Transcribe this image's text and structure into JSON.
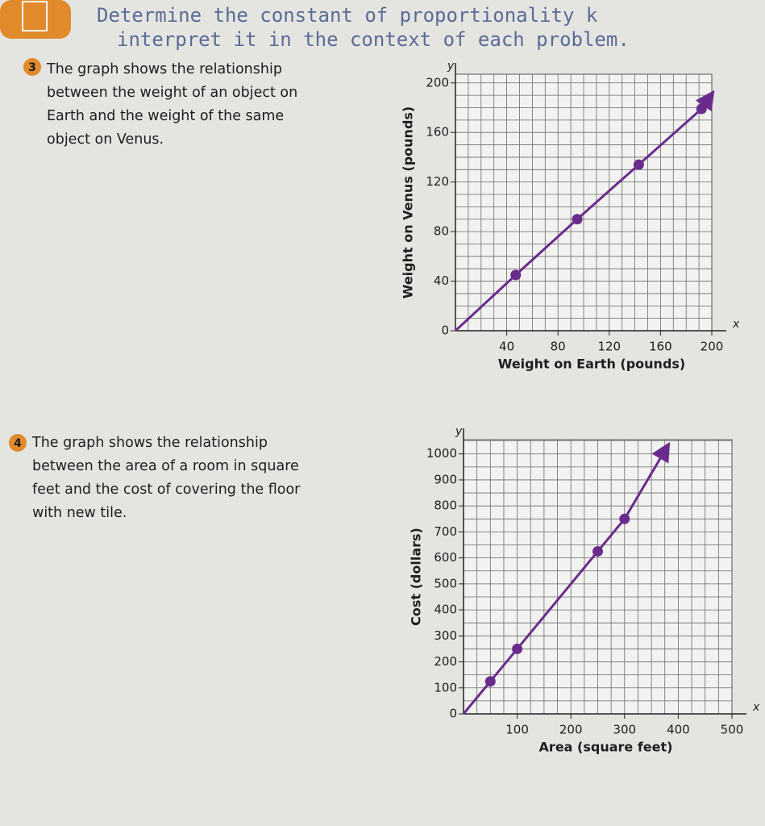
{
  "header": {
    "lines": [
      "Determine the constant of proportionality k",
      "interpret it in the context of each problem."
    ]
  },
  "problems": [
    {
      "number": "3",
      "lines": [
        "The graph shows the relationship",
        "between the weight of an object on",
        "Earth and the weight of the same",
        "object on Venus."
      ]
    },
    {
      "number": "4",
      "lines": [
        "The graph shows the relationship",
        "between the area of a room in square",
        "feet and the cost of covering the floor",
        "with new tile."
      ]
    }
  ],
  "chart_data": [
    {
      "type": "line",
      "xlabel": "Weight on Earth (pounds)",
      "ylabel": "Weight on Venus (pounds)",
      "x_axis_letter": "x",
      "y_axis_letter": "y",
      "x": [
        0,
        47,
        95,
        143,
        192,
        200
      ],
      "series": [
        {
          "values": [
            0,
            45,
            90,
            134,
            179,
            191
          ],
          "color": "#6a2c8c"
        }
      ],
      "xlim": [
        0,
        200
      ],
      "ylim": [
        0,
        207
      ],
      "xticks": [
        40,
        80,
        120,
        160,
        200
      ],
      "yticks": [
        0,
        40,
        80,
        120,
        160,
        200
      ],
      "grid": true,
      "grid_step": [
        10,
        10
      ]
    },
    {
      "type": "line",
      "xlabel": "Area (square feet)",
      "ylabel": "Cost (dollars)",
      "x_axis_letter": "x",
      "y_axis_letter": "y",
      "x": [
        0,
        50,
        100,
        250,
        300,
        380
      ],
      "series": [
        {
          "values": [
            0,
            125,
            250,
            625,
            750,
            1030
          ],
          "color": "#6a2c8c"
        }
      ],
      "xlim": [
        0,
        500
      ],
      "ylim": [
        0,
        1055
      ],
      "xticks": [
        100,
        200,
        300,
        400,
        500
      ],
      "yticks": [
        0,
        100,
        200,
        300,
        400,
        500,
        600,
        700,
        800,
        900,
        1000
      ],
      "grid": true,
      "grid_step": [
        25,
        50
      ]
    }
  ]
}
